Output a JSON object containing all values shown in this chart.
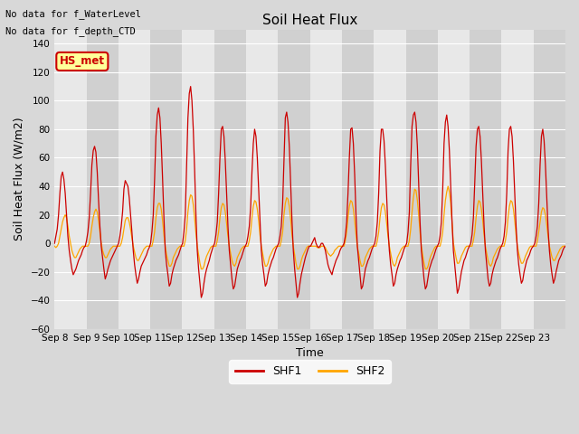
{
  "title": "Soil Heat Flux",
  "xlabel": "Time",
  "ylabel": "Soil Heat Flux (W/m2)",
  "ylim": [
    -60,
    150
  ],
  "yticks": [
    -60,
    -40,
    -20,
    0,
    20,
    40,
    60,
    80,
    100,
    120,
    140
  ],
  "shf1_color": "#CC0000",
  "shf2_color": "#FFA500",
  "bg_color": "#D8D8D8",
  "plot_bg_color_light": "#E8E8E8",
  "plot_bg_color_dark": "#D0D0D0",
  "annotation_text1": "No data for f_WaterLevel",
  "annotation_text2": "No data for f_depth_CTD",
  "inset_label": "HS_met",
  "legend_labels": [
    "SHF1",
    "SHF2"
  ],
  "xtick_labels": [
    "Sep 8",
    "Sep 9",
    "Sep 10",
    "Sep 11",
    "Sep 12",
    "Sep 13",
    "Sep 14",
    "Sep 15",
    "Sep 16",
    "Sep 17",
    "Sep 18",
    "Sep 19",
    "Sep 20",
    "Sep 21",
    "Sep 22",
    "Sep 23"
  ],
  "n_days": 16,
  "figwidth": 6.4,
  "figheight": 4.8,
  "dpi": 100,
  "shf1": [
    0,
    5,
    10,
    20,
    35,
    47,
    50,
    45,
    35,
    20,
    5,
    -5,
    -12,
    -18,
    -22,
    -20,
    -18,
    -15,
    -12,
    -10,
    -8,
    -5,
    -3,
    -2,
    2,
    8,
    18,
    35,
    55,
    65,
    68,
    64,
    50,
    30,
    12,
    -2,
    -10,
    -18,
    -25,
    -22,
    -18,
    -15,
    -12,
    -10,
    -8,
    -6,
    -4,
    -2,
    0,
    5,
    12,
    22,
    38,
    44,
    42,
    40,
    32,
    20,
    8,
    -5,
    -15,
    -22,
    -28,
    -25,
    -20,
    -16,
    -14,
    -12,
    -10,
    -8,
    -5,
    -3,
    0,
    8,
    20,
    45,
    75,
    90,
    95,
    88,
    70,
    45,
    18,
    -5,
    -15,
    -22,
    -30,
    -28,
    -22,
    -18,
    -15,
    -12,
    -10,
    -8,
    -5,
    -2,
    0,
    8,
    20,
    55,
    88,
    105,
    110,
    100,
    80,
    52,
    20,
    -5,
    -18,
    -28,
    -38,
    -35,
    -28,
    -22,
    -18,
    -15,
    -12,
    -8,
    -5,
    -2,
    0,
    6,
    15,
    35,
    60,
    80,
    82,
    75,
    58,
    35,
    12,
    -5,
    -15,
    -25,
    -32,
    -30,
    -24,
    -18,
    -15,
    -12,
    -10,
    -7,
    -4,
    -2,
    0,
    5,
    12,
    25,
    50,
    70,
    80,
    75,
    60,
    38,
    15,
    -5,
    -15,
    -22,
    -30,
    -28,
    -22,
    -18,
    -15,
    -12,
    -10,
    -7,
    -4,
    -2,
    0,
    5,
    12,
    28,
    58,
    88,
    92,
    85,
    68,
    42,
    16,
    -5,
    -18,
    -28,
    -38,
    -35,
    -28,
    -22,
    -18,
    -14,
    -10,
    -7,
    -4,
    -2,
    -2,
    0,
    2,
    4,
    0,
    -2,
    -3,
    -2,
    0,
    0,
    -2,
    -5,
    -10,
    -15,
    -18,
    -20,
    -22,
    -18,
    -15,
    -12,
    -10,
    -8,
    -5,
    -3,
    -2,
    0,
    5,
    15,
    35,
    60,
    80,
    81,
    70,
    48,
    20,
    -2,
    -12,
    -22,
    -32,
    -30,
    -24,
    -18,
    -15,
    -12,
    -10,
    -7,
    -4,
    -2,
    0,
    5,
    15,
    35,
    65,
    80,
    80,
    72,
    55,
    32,
    10,
    -5,
    -15,
    -22,
    -30,
    -28,
    -22,
    -18,
    -15,
    -12,
    -10,
    -7,
    -4,
    -2,
    0,
    8,
    22,
    55,
    82,
    90,
    92,
    85,
    68,
    42,
    15,
    -5,
    -15,
    -25,
    -32,
    -30,
    -24,
    -18,
    -15,
    -12,
    -10,
    -7,
    -4,
    -2,
    0,
    5,
    15,
    38,
    70,
    85,
    90,
    82,
    65,
    40,
    15,
    -5,
    -15,
    -25,
    -35,
    -32,
    -26,
    -20,
    -16,
    -12,
    -10,
    -7,
    -4,
    -2,
    0,
    6,
    18,
    42,
    68,
    80,
    82,
    75,
    58,
    35,
    12,
    -5,
    -15,
    -25,
    -30,
    -28,
    -22,
    -18,
    -15,
    -12,
    -10,
    -7,
    -4,
    -2,
    0,
    5,
    15,
    35,
    65,
    80,
    82,
    75,
    58,
    35,
    12,
    -5,
    -15,
    -22,
    -28,
    -26,
    -20,
    -16,
    -12,
    -10,
    -8,
    -5,
    -3,
    -2,
    0,
    5,
    12,
    28,
    55,
    75,
    80,
    72,
    55,
    32,
    10,
    -5,
    -15,
    -22,
    -28,
    -25,
    -20,
    -16,
    -12,
    -10,
    -8,
    -5,
    -3,
    -2
  ],
  "shf2": [
    -2,
    -3,
    -2,
    0,
    5,
    10,
    15,
    18,
    20,
    18,
    12,
    5,
    0,
    -5,
    -8,
    -10,
    -10,
    -8,
    -6,
    -4,
    -3,
    -2,
    -2,
    -2,
    -2,
    -2,
    0,
    5,
    12,
    18,
    22,
    24,
    22,
    16,
    8,
    0,
    -5,
    -8,
    -10,
    -10,
    -8,
    -6,
    -4,
    -3,
    -2,
    -2,
    -2,
    -2,
    -2,
    -2,
    0,
    4,
    10,
    16,
    18,
    18,
    15,
    10,
    4,
    -2,
    -6,
    -10,
    -12,
    -12,
    -10,
    -8,
    -6,
    -4,
    -3,
    -2,
    -2,
    -2,
    -2,
    -2,
    2,
    8,
    18,
    25,
    28,
    28,
    24,
    16,
    6,
    -2,
    -8,
    -12,
    -16,
    -16,
    -14,
    -10,
    -8,
    -6,
    -4,
    -3,
    -2,
    -2,
    -2,
    -2,
    2,
    10,
    22,
    30,
    34,
    33,
    27,
    18,
    7,
    -2,
    -8,
    -14,
    -18,
    -18,
    -16,
    -12,
    -9,
    -7,
    -5,
    -3,
    -2,
    -2,
    -2,
    -2,
    2,
    8,
    18,
    25,
    28,
    27,
    22,
    14,
    5,
    -2,
    -7,
    -12,
    -15,
    -16,
    -14,
    -10,
    -8,
    -6,
    -4,
    -3,
    -2,
    -2,
    -2,
    -2,
    2,
    8,
    18,
    26,
    30,
    29,
    24,
    16,
    6,
    -2,
    -7,
    -12,
    -16,
    -16,
    -14,
    -10,
    -8,
    -6,
    -4,
    -3,
    -2,
    -2,
    -2,
    -2,
    2,
    8,
    20,
    28,
    32,
    31,
    26,
    17,
    6,
    -2,
    -8,
    -14,
    -18,
    -18,
    -16,
    -12,
    -9,
    -7,
    -5,
    -3,
    -2,
    -2,
    -2,
    -2,
    -2,
    -2,
    -2,
    -3,
    -3,
    -3,
    -2,
    -2,
    -2,
    -3,
    -5,
    -7,
    -8,
    -9,
    -8,
    -7,
    -5,
    -4,
    -3,
    -2,
    -2,
    -2,
    -2,
    -2,
    2,
    8,
    18,
    26,
    30,
    29,
    24,
    16,
    6,
    -2,
    -7,
    -12,
    -16,
    -16,
    -14,
    -10,
    -8,
    -6,
    -4,
    -3,
    -2,
    -2,
    -2,
    -2,
    2,
    8,
    18,
    25,
    28,
    27,
    22,
    14,
    5,
    -2,
    -7,
    -12,
    -15,
    -16,
    -14,
    -10,
    -8,
    -6,
    -4,
    -3,
    -2,
    -2,
    -2,
    -2,
    2,
    10,
    22,
    32,
    38,
    37,
    30,
    20,
    8,
    -2,
    -8,
    -14,
    -18,
    -18,
    -16,
    -12,
    -9,
    -7,
    -5,
    -3,
    -2,
    -2,
    -2,
    -2,
    2,
    8,
    20,
    30,
    36,
    40,
    36,
    28,
    15,
    0,
    -5,
    -10,
    -14,
    -14,
    -12,
    -9,
    -7,
    -5,
    -3,
    -2,
    -2,
    -2,
    -2,
    -2,
    2,
    8,
    18,
    26,
    30,
    29,
    24,
    16,
    6,
    -2,
    -7,
    -12,
    -15,
    -16,
    -14,
    -10,
    -8,
    -6,
    -4,
    -3,
    -2,
    -2,
    -2,
    -2,
    2,
    8,
    18,
    26,
    30,
    29,
    24,
    16,
    6,
    -2,
    -7,
    -11,
    -14,
    -14,
    -12,
    -9,
    -7,
    -5,
    -3,
    -2,
    -2,
    -2,
    -2,
    -2,
    2,
    8,
    15,
    22,
    25,
    24,
    20,
    13,
    5,
    -2,
    -6,
    -10,
    -12,
    -12,
    -10,
    -8,
    -6,
    -4,
    -3,
    -2,
    -2,
    -2
  ]
}
